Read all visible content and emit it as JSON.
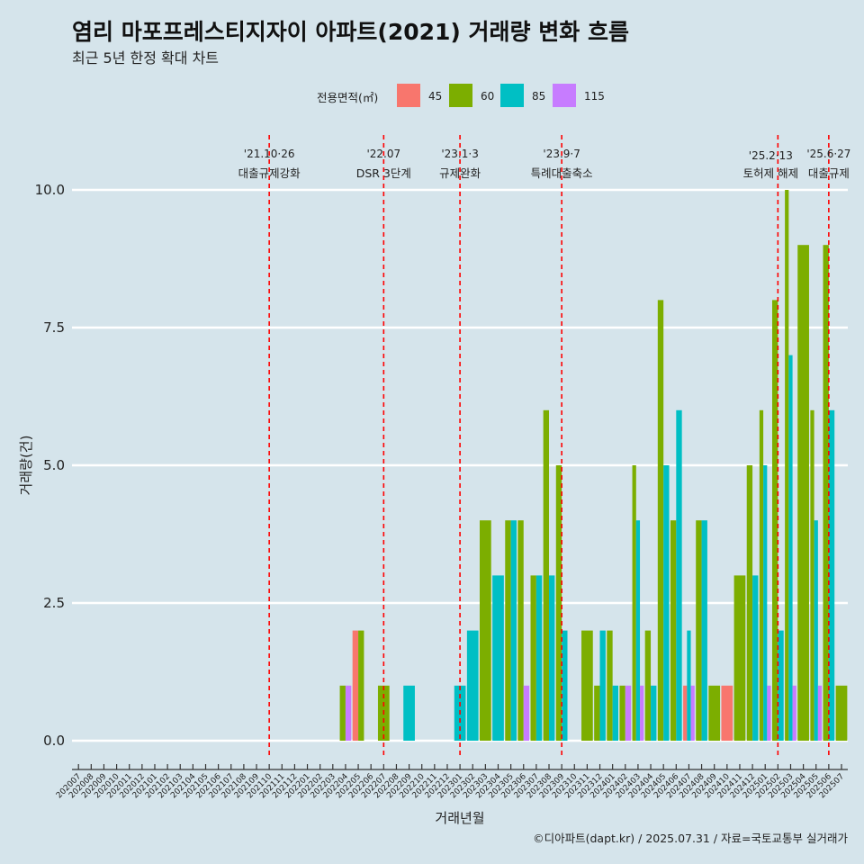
{
  "title": "염리 마포프레스티지자이 아파트(2021) 거래량 변화 흐름",
  "subtitle": "최근 5년 한정 확대 차트",
  "caption": "©디아파트(dapt.kr) / 2025.07.31 / 자료=국토교통부 실거래가",
  "chart_data": {
    "type": "bar",
    "xlabel": "거래년월",
    "ylabel": "거래량(건)",
    "ylim": [
      0,
      10
    ],
    "y_ticks": [
      0,
      2.5,
      5,
      7.5,
      10
    ],
    "y_tick_labels": [
      "0.0",
      "2.5",
      "5.0",
      "7.5",
      "10.0"
    ],
    "grid": true,
    "legend": {
      "title": "전용면적(㎡)",
      "placement": "top",
      "entries": [
        {
          "name": "45",
          "color": "#f8766d"
        },
        {
          "name": "60",
          "color": "#7cae00"
        },
        {
          "name": "85",
          "color": "#00bfc4"
        },
        {
          "name": "115",
          "color": "#c77cff"
        }
      ]
    },
    "categories": [
      "202007",
      "202008",
      "202009",
      "202010",
      "202011",
      "202012",
      "202101",
      "202102",
      "202103",
      "202104",
      "202105",
      "202106",
      "202107",
      "202108",
      "202109",
      "202110",
      "202111",
      "202112",
      "202201",
      "202202",
      "202203",
      "202204",
      "202205",
      "202206",
      "202207",
      "202208",
      "202209",
      "202210",
      "202211",
      "202212",
      "202301",
      "202302",
      "202303",
      "202304",
      "202305",
      "202306",
      "202307",
      "202308",
      "202309",
      "202310",
      "202311",
      "202312",
      "202401",
      "202402",
      "202403",
      "202404",
      "202405",
      "202406",
      "202407",
      "202408",
      "202409",
      "202410",
      "202411",
      "202412",
      "202501",
      "202502",
      "202503",
      "202504",
      "202505",
      "202506",
      "202507"
    ],
    "bars": [
      {
        "month": "202204",
        "size": "60",
        "value": 1
      },
      {
        "month": "202204",
        "size": "115",
        "value": 1
      },
      {
        "month": "202205",
        "size": "45",
        "value": 2
      },
      {
        "month": "202205",
        "size": "60",
        "value": 2
      },
      {
        "month": "202207",
        "size": "60",
        "value": 1
      },
      {
        "month": "202209",
        "size": "85",
        "value": 1
      },
      {
        "month": "202301",
        "size": "85",
        "value": 1
      },
      {
        "month": "202302",
        "size": "85",
        "value": 2
      },
      {
        "month": "202303",
        "size": "60",
        "value": 4
      },
      {
        "month": "202304",
        "size": "85",
        "value": 3
      },
      {
        "month": "202305",
        "size": "60",
        "value": 4
      },
      {
        "month": "202305",
        "size": "85",
        "value": 4
      },
      {
        "month": "202306",
        "size": "60",
        "value": 4
      },
      {
        "month": "202306",
        "size": "115",
        "value": 1
      },
      {
        "month": "202307",
        "size": "60",
        "value": 3
      },
      {
        "month": "202307",
        "size": "85",
        "value": 3
      },
      {
        "month": "202308",
        "size": "60",
        "value": 6
      },
      {
        "month": "202308",
        "size": "85",
        "value": 3
      },
      {
        "month": "202309",
        "size": "60",
        "value": 5
      },
      {
        "month": "202309",
        "size": "85",
        "value": 2
      },
      {
        "month": "202311",
        "size": "60",
        "value": 2
      },
      {
        "month": "202312",
        "size": "60",
        "value": 1
      },
      {
        "month": "202312",
        "size": "85",
        "value": 2
      },
      {
        "month": "202401",
        "size": "60",
        "value": 2
      },
      {
        "month": "202401",
        "size": "85",
        "value": 1
      },
      {
        "month": "202402",
        "size": "60",
        "value": 1
      },
      {
        "month": "202402",
        "size": "115",
        "value": 1
      },
      {
        "month": "202403",
        "size": "60",
        "value": 5
      },
      {
        "month": "202403",
        "size": "85",
        "value": 4
      },
      {
        "month": "202403",
        "size": "115",
        "value": 1
      },
      {
        "month": "202404",
        "size": "60",
        "value": 2
      },
      {
        "month": "202404",
        "size": "85",
        "value": 1
      },
      {
        "month": "202405",
        "size": "60",
        "value": 8
      },
      {
        "month": "202405",
        "size": "85",
        "value": 5
      },
      {
        "month": "202406",
        "size": "60",
        "value": 4
      },
      {
        "month": "202406",
        "size": "85",
        "value": 6
      },
      {
        "month": "202407",
        "size": "45",
        "value": 1
      },
      {
        "month": "202407",
        "size": "85",
        "value": 2
      },
      {
        "month": "202407",
        "size": "115",
        "value": 1
      },
      {
        "month": "202408",
        "size": "60",
        "value": 4
      },
      {
        "month": "202408",
        "size": "85",
        "value": 4
      },
      {
        "month": "202409",
        "size": "60",
        "value": 1
      },
      {
        "month": "202410",
        "size": "45",
        "value": 1
      },
      {
        "month": "202411",
        "size": "60",
        "value": 3
      },
      {
        "month": "202412",
        "size": "60",
        "value": 5
      },
      {
        "month": "202412",
        "size": "85",
        "value": 3
      },
      {
        "month": "202501",
        "size": "60",
        "value": 6
      },
      {
        "month": "202501",
        "size": "85",
        "value": 5
      },
      {
        "month": "202501",
        "size": "115",
        "value": 1
      },
      {
        "month": "202502",
        "size": "60",
        "value": 8
      },
      {
        "month": "202502",
        "size": "85",
        "value": 2
      },
      {
        "month": "202503",
        "size": "60",
        "value": 10
      },
      {
        "month": "202503",
        "size": "85",
        "value": 7
      },
      {
        "month": "202503",
        "size": "115",
        "value": 1
      },
      {
        "month": "202504",
        "size": "60",
        "value": 9
      },
      {
        "month": "202505",
        "size": "60",
        "value": 6
      },
      {
        "month": "202505",
        "size": "85",
        "value": 4
      },
      {
        "month": "202505",
        "size": "115",
        "value": 1
      },
      {
        "month": "202506",
        "size": "60",
        "value": 9
      },
      {
        "month": "202506",
        "size": "85",
        "value": 6
      },
      {
        "month": "202507",
        "size": "60",
        "value": 1
      }
    ],
    "events": [
      {
        "date": "'21.10·26",
        "name": "대출규제강화",
        "position": "202110",
        "color": "#ff0000"
      },
      {
        "date": "'22.07",
        "name": "DSR 3단계",
        "position": "202207",
        "color": "#ff0000"
      },
      {
        "date": "'23.1·3",
        "name": "규제완화",
        "position": "202301",
        "color": "#ff0000"
      },
      {
        "date": "'23.9·7",
        "name": "특례대출축소",
        "position": "202309",
        "color": "#ff0000"
      },
      {
        "date": "'25.2·13",
        "name": "토허제 해제",
        "position": "202502",
        "color": "#ff0000"
      },
      {
        "date": "'25.6·27",
        "name": "대출규제",
        "position": "202506",
        "color": "#ff0000"
      }
    ]
  }
}
